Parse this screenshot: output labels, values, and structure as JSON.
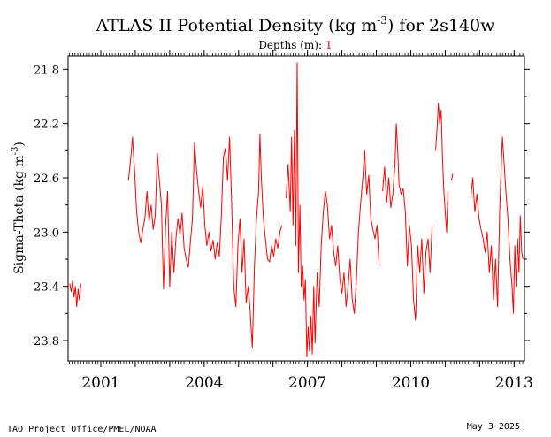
{
  "chart_data": {
    "type": "line",
    "title_main": "ATLAS II Potential Density (kg m",
    "title_sup": "-3",
    "title_tail": ") for 2s140w",
    "subtitle_label": "Depths (m):",
    "subtitle_value": "1",
    "ylabel_main": "Sigma-Theta (kg m",
    "ylabel_sup": "-3",
    "ylabel_tail": ")",
    "xlim": [
      2000.05,
      2013.3
    ],
    "ylim": [
      23.95,
      21.7
    ],
    "y_inverted": true,
    "yticks": [
      21.8,
      22.2,
      22.6,
      23.0,
      23.4,
      23.8
    ],
    "ytick_labels": [
      "21.8",
      "22.2",
      "22.6",
      "23.0",
      "23.4",
      "23.8"
    ],
    "xticks": [
      2001,
      2004,
      2007,
      2010,
      2013
    ],
    "xtick_labels": [
      "2001",
      "2004",
      "2007",
      "2010",
      "2013"
    ],
    "grid": false,
    "series": [
      {
        "color": "#ff0000",
        "segments": [
          [
            [
              2000.1,
              23.38
            ],
            [
              2000.14,
              23.44
            ],
            [
              2000.18,
              23.36
            ],
            [
              2000.22,
              23.48
            ],
            [
              2000.26,
              23.4
            ],
            [
              2000.3,
              23.55
            ],
            [
              2000.34,
              23.42
            ],
            [
              2000.38,
              23.5
            ],
            [
              2000.42,
              23.38
            ]
          ],
          [
            [
              2001.8,
              22.62
            ],
            [
              2001.86,
              22.48
            ],
            [
              2001.92,
              22.3
            ],
            [
              2001.98,
              22.55
            ],
            [
              2002.04,
              22.85
            ],
            [
              2002.1,
              23.0
            ],
            [
              2002.16,
              23.08
            ],
            [
              2002.22,
              22.98
            ],
            [
              2002.28,
              22.9
            ],
            [
              2002.34,
              22.7
            ],
            [
              2002.4,
              22.92
            ],
            [
              2002.46,
              22.8
            ],
            [
              2002.52,
              22.98
            ],
            [
              2002.58,
              22.88
            ],
            [
              2002.64,
              22.42
            ],
            [
              2002.7,
              22.62
            ],
            [
              2002.76,
              22.8
            ],
            [
              2002.82,
              23.42
            ],
            [
              2002.88,
              22.96
            ],
            [
              2002.94,
              22.7
            ],
            [
              2003.0,
              23.4
            ],
            [
              2003.06,
              23.0
            ],
            [
              2003.12,
              23.3
            ],
            [
              2003.18,
              23.05
            ],
            [
              2003.24,
              22.9
            ],
            [
              2003.3,
              23.02
            ],
            [
              2003.36,
              22.86
            ],
            [
              2003.42,
              23.12
            ],
            [
              2003.48,
              23.2
            ],
            [
              2003.54,
              23.26
            ],
            [
              2003.6,
              23.08
            ],
            [
              2003.66,
              22.9
            ],
            [
              2003.72,
              22.34
            ],
            [
              2003.78,
              22.55
            ],
            [
              2003.84,
              22.7
            ],
            [
              2003.9,
              22.82
            ],
            [
              2003.96,
              22.66
            ],
            [
              2004.02,
              22.95
            ],
            [
              2004.08,
              23.1
            ],
            [
              2004.14,
              23.0
            ],
            [
              2004.2,
              23.14
            ],
            [
              2004.26,
              23.06
            ],
            [
              2004.32,
              23.2
            ],
            [
              2004.38,
              23.08
            ],
            [
              2004.44,
              23.18
            ],
            [
              2004.5,
              22.88
            ],
            [
              2004.56,
              22.45
            ],
            [
              2004.62,
              22.38
            ],
            [
              2004.68,
              22.62
            ],
            [
              2004.74,
              22.3
            ],
            [
              2004.8,
              22.8
            ],
            [
              2004.86,
              23.4
            ],
            [
              2004.92,
              23.55
            ],
            [
              2004.98,
              23.1
            ],
            [
              2005.04,
              22.9
            ],
            [
              2005.1,
              23.3
            ],
            [
              2005.16,
              23.05
            ],
            [
              2005.22,
              23.52
            ],
            [
              2005.28,
              23.4
            ],
            [
              2005.34,
              23.6
            ],
            [
              2005.4,
              23.85
            ],
            [
              2005.46,
              23.25
            ],
            [
              2005.52,
              22.9
            ],
            [
              2005.58,
              22.7
            ],
            [
              2005.62,
              22.28
            ],
            [
              2005.66,
              22.6
            ],
            [
              2005.72,
              22.9
            ],
            [
              2005.78,
              23.05
            ],
            [
              2005.84,
              23.2
            ],
            [
              2005.9,
              23.22
            ],
            [
              2005.96,
              23.1
            ],
            [
              2006.02,
              23.18
            ],
            [
              2006.08,
              23.05
            ],
            [
              2006.14,
              23.12
            ],
            [
              2006.2,
              23.0
            ],
            [
              2006.26,
              22.95
            ]
          ],
          [
            [
              2006.38,
              22.75
            ],
            [
              2006.44,
              22.5
            ],
            [
              2006.5,
              22.85
            ],
            [
              2006.54,
              22.3
            ],
            [
              2006.58,
              22.95
            ],
            [
              2006.62,
              22.25
            ],
            [
              2006.66,
              23.1
            ],
            [
              2006.7,
              21.75
            ],
            [
              2006.74,
              23.3
            ],
            [
              2006.78,
              22.8
            ],
            [
              2006.82,
              23.4
            ],
            [
              2006.86,
              23.25
            ],
            [
              2006.9,
              23.5
            ],
            [
              2006.94,
              23.35
            ],
            [
              2006.98,
              23.92
            ],
            [
              2007.02,
              23.7
            ],
            [
              2007.06,
              23.88
            ],
            [
              2007.1,
              23.62
            ],
            [
              2007.14,
              23.9
            ],
            [
              2007.18,
              23.4
            ],
            [
              2007.22,
              23.82
            ],
            [
              2007.28,
              23.3
            ],
            [
              2007.34,
              23.55
            ],
            [
              2007.4,
              23.1
            ],
            [
              2007.46,
              22.85
            ],
            [
              2007.52,
              22.7
            ],
            [
              2007.58,
              22.8
            ],
            [
              2007.64,
              23.05
            ],
            [
              2007.7,
              22.95
            ],
            [
              2007.76,
              23.15
            ],
            [
              2007.82,
              23.25
            ],
            [
              2007.88,
              23.1
            ],
            [
              2007.94,
              23.35
            ],
            [
              2008.0,
              23.45
            ],
            [
              2008.06,
              23.3
            ],
            [
              2008.12,
              23.55
            ],
            [
              2008.18,
              23.4
            ],
            [
              2008.24,
              23.2
            ],
            [
              2008.3,
              23.5
            ],
            [
              2008.36,
              23.6
            ],
            [
              2008.42,
              23.35
            ],
            [
              2008.48,
              23.0
            ],
            [
              2008.54,
              22.8
            ],
            [
              2008.6,
              22.62
            ],
            [
              2008.66,
              22.4
            ],
            [
              2008.72,
              22.72
            ],
            [
              2008.78,
              22.58
            ],
            [
              2008.84,
              22.9
            ],
            [
              2008.9,
              22.98
            ],
            [
              2008.96,
              23.05
            ],
            [
              2009.02,
              22.95
            ],
            [
              2009.08,
              23.25
            ]
          ],
          [
            [
              2009.18,
              22.7
            ],
            [
              2009.24,
              22.52
            ],
            [
              2009.3,
              22.78
            ],
            [
              2009.36,
              22.6
            ],
            [
              2009.42,
              22.82
            ],
            [
              2009.48,
              22.72
            ],
            [
              2009.54,
              22.5
            ],
            [
              2009.58,
              22.2
            ],
            [
              2009.62,
              22.4
            ],
            [
              2009.66,
              22.65
            ],
            [
              2009.72,
              22.72
            ],
            [
              2009.78,
              22.68
            ],
            [
              2009.84,
              22.85
            ],
            [
              2009.9,
              23.25
            ],
            [
              2009.96,
              22.95
            ],
            [
              2010.02,
              23.1
            ],
            [
              2010.08,
              23.5
            ],
            [
              2010.14,
              23.65
            ],
            [
              2010.2,
              23.1
            ],
            [
              2010.26,
              23.3
            ],
            [
              2010.32,
              23.05
            ],
            [
              2010.38,
              23.45
            ],
            [
              2010.44,
              23.15
            ],
            [
              2010.5,
              23.05
            ],
            [
              2010.56,
              23.3
            ],
            [
              2010.62,
              22.95
            ]
          ],
          [
            [
              2010.72,
              22.4
            ],
            [
              2010.76,
              22.25
            ],
            [
              2010.8,
              22.05
            ],
            [
              2010.84,
              22.2
            ],
            [
              2010.88,
              22.1
            ],
            [
              2010.92,
              22.45
            ],
            [
              2010.96,
              22.7
            ],
            [
              2011.0,
              22.85
            ],
            [
              2011.04,
              23.0
            ],
            [
              2011.08,
              22.7
            ]
          ],
          [
            [
              2011.18,
              22.62
            ],
            [
              2011.22,
              22.57
            ]
          ],
          [
            [
              2011.74,
              22.75
            ],
            [
              2011.8,
              22.6
            ],
            [
              2011.86,
              22.85
            ],
            [
              2011.92,
              22.72
            ],
            [
              2011.98,
              22.9
            ],
            [
              2012.04,
              22.98
            ],
            [
              2012.1,
              23.05
            ],
            [
              2012.16,
              23.15
            ],
            [
              2012.22,
              23.0
            ],
            [
              2012.28,
              23.3
            ],
            [
              2012.34,
              23.1
            ],
            [
              2012.4,
              23.5
            ],
            [
              2012.46,
              23.2
            ],
            [
              2012.52,
              23.55
            ],
            [
              2012.58,
              22.85
            ],
            [
              2012.62,
              22.55
            ],
            [
              2012.66,
              22.3
            ],
            [
              2012.7,
              22.45
            ],
            [
              2012.76,
              22.7
            ],
            [
              2012.82,
              22.9
            ],
            [
              2012.88,
              23.2
            ],
            [
              2012.94,
              23.4
            ],
            [
              2012.98,
              23.6
            ],
            [
              2013.02,
              23.1
            ],
            [
              2013.06,
              23.4
            ],
            [
              2013.1,
              23.05
            ],
            [
              2013.14,
              23.3
            ],
            [
              2013.18,
              22.88
            ],
            [
              2013.22,
              23.15
            ],
            [
              2013.26,
              23.2
            ]
          ]
        ]
      }
    ]
  },
  "footer": {
    "left": "TAO Project Office/PMEL/NOAA",
    "right": "May  3 2025"
  }
}
